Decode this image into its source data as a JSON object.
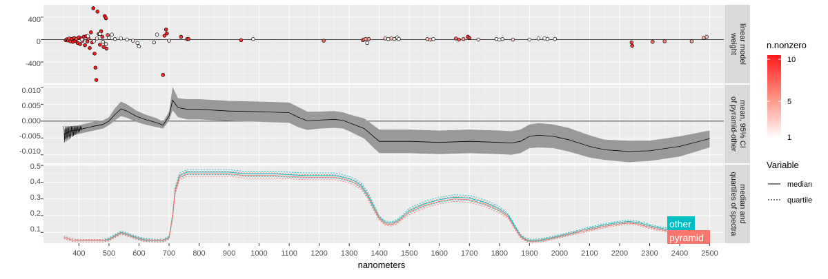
{
  "x_axis": {
    "title": "nanometers",
    "ticks": [
      400,
      500,
      600,
      700,
      800,
      900,
      1000,
      1100,
      1200,
      1300,
      1400,
      1500,
      1600,
      1700,
      1800,
      1900,
      2000,
      2100,
      2200,
      2300,
      2400,
      2500
    ]
  },
  "panels": [
    {
      "strip": [
        "linear model",
        "weight"
      ],
      "yticks": [
        "400",
        "0",
        "-400"
      ]
    },
    {
      "strip": [
        "mean, 95% CI",
        "of pyramid-other"
      ],
      "yticks": [
        "0.010",
        "0.005",
        "0.000",
        "-0.005",
        "-0.010"
      ]
    },
    {
      "strip": [
        "median and",
        "quartiles of spectra"
      ],
      "yticks": [
        "0.5",
        "0.4",
        "0.3",
        "0.2",
        "0.1"
      ]
    }
  ],
  "legends": {
    "color": {
      "title": "n.nonzero",
      "labels": [
        "10",
        "5",
        "1"
      ],
      "colors": [
        "#ff1a1a",
        "#ff8f80",
        "#ffffff"
      ]
    },
    "linetype": {
      "title": "Variable",
      "items": [
        "median",
        "quartile"
      ]
    }
  },
  "labels": {
    "other": "other",
    "pyramid": "pyramid"
  },
  "colors": {
    "other": "#00bfc4",
    "pyramid": "#f8766d",
    "panel_bg": "#ebebeb",
    "strip_bg": "#d9d9d9",
    "ribbon": "#999999"
  },
  "chart_data": [
    {
      "type": "scatter",
      "panel": "linear model weight",
      "xlabel": "nanometers",
      "ylim": [
        -780,
        620
      ],
      "hline": 0,
      "points": [
        [
          356,
          -10,
          9
        ],
        [
          360,
          5,
          10
        ],
        [
          364,
          -15,
          10
        ],
        [
          368,
          20,
          8
        ],
        [
          372,
          -30,
          9
        ],
        [
          376,
          10,
          10
        ],
        [
          380,
          -40,
          10
        ],
        [
          384,
          30,
          9
        ],
        [
          388,
          -25,
          10
        ],
        [
          392,
          15,
          8
        ],
        [
          396,
          -60,
          10
        ],
        [
          400,
          40,
          9
        ],
        [
          404,
          -80,
          10
        ],
        [
          408,
          25,
          10
        ],
        [
          412,
          -20,
          8
        ],
        [
          416,
          50,
          9
        ],
        [
          420,
          -100,
          10
        ],
        [
          424,
          60,
          10
        ],
        [
          428,
          -35,
          9
        ],
        [
          432,
          20,
          8
        ],
        [
          436,
          -150,
          10
        ],
        [
          440,
          130,
          10
        ],
        [
          444,
          -50,
          9
        ],
        [
          448,
          560,
          10
        ],
        [
          452,
          -250,
          10
        ],
        [
          455,
          -500,
          10
        ],
        [
          458,
          -720,
          10
        ],
        [
          462,
          500,
          10
        ],
        [
          466,
          100,
          9
        ],
        [
          470,
          -90,
          10
        ],
        [
          474,
          150,
          10
        ],
        [
          478,
          50,
          9
        ],
        [
          482,
          -130,
          10
        ],
        [
          486,
          420,
          10
        ],
        [
          490,
          380,
          10
        ],
        [
          492,
          -160,
          9
        ],
        [
          496,
          80,
          8
        ],
        [
          410,
          0,
          2
        ],
        [
          430,
          60,
          1
        ],
        [
          450,
          -30,
          1
        ],
        [
          460,
          20,
          2
        ],
        [
          470,
          100,
          1
        ],
        [
          480,
          -40,
          1
        ],
        [
          490,
          -80,
          2
        ],
        [
          500,
          30,
          1
        ],
        [
          510,
          90,
          1
        ],
        [
          520,
          10,
          2
        ],
        [
          540,
          20,
          1
        ],
        [
          560,
          0,
          1
        ],
        [
          580,
          -20,
          2
        ],
        [
          595,
          -60,
          1
        ],
        [
          600,
          -120,
          1
        ],
        [
          650,
          -50,
          2
        ],
        [
          660,
          90,
          1
        ],
        [
          680,
          -630,
          10
        ],
        [
          685,
          70,
          9
        ],
        [
          690,
          180,
          10
        ],
        [
          693,
          110,
          10
        ],
        [
          700,
          -20,
          2
        ],
        [
          740,
          50,
          9
        ],
        [
          760,
          10,
          8
        ],
        [
          765,
          10,
          9
        ],
        [
          940,
          -10,
          9
        ],
        [
          980,
          10,
          1
        ],
        [
          1215,
          -20,
          7
        ],
        [
          1345,
          -10,
          6
        ],
        [
          1350,
          0,
          6
        ],
        [
          1355,
          10,
          5
        ],
        [
          1360,
          -60,
          1
        ],
        [
          1365,
          10,
          5
        ],
        [
          1420,
          20,
          3
        ],
        [
          1430,
          10,
          1
        ],
        [
          1440,
          20,
          4
        ],
        [
          1450,
          10,
          2
        ],
        [
          1460,
          40,
          1
        ],
        [
          1465,
          10,
          1
        ],
        [
          1560,
          10,
          3
        ],
        [
          1570,
          0,
          4
        ],
        [
          1580,
          10,
          1
        ],
        [
          1655,
          20,
          7
        ],
        [
          1665,
          0,
          8
        ],
        [
          1680,
          10,
          5
        ],
        [
          1695,
          50,
          9
        ],
        [
          1700,
          30,
          9
        ],
        [
          1730,
          0,
          2
        ],
        [
          1790,
          10,
          1
        ],
        [
          1800,
          0,
          1
        ],
        [
          1810,
          10,
          2
        ],
        [
          1845,
          0,
          3
        ],
        [
          1900,
          0,
          1
        ],
        [
          1930,
          20,
          1
        ],
        [
          1950,
          20,
          1
        ],
        [
          1960,
          10,
          1
        ],
        [
          1985,
          10,
          1
        ],
        [
          2240,
          -50,
          8
        ],
        [
          2242,
          -110,
          9
        ],
        [
          2310,
          -40,
          7
        ],
        [
          2350,
          -30,
          6
        ],
        [
          2440,
          -30,
          5
        ],
        [
          2480,
          30,
          4
        ],
        [
          2490,
          50,
          3
        ]
      ]
    },
    {
      "type": "area",
      "panel": "mean, 95% CI of pyramid-other",
      "xlabel": "nanometers",
      "ylim": [
        -0.0125,
        0.0108
      ],
      "hline": 0,
      "x": [
        350,
        370,
        400,
        450,
        480,
        500,
        520,
        540,
        560,
        590,
        620,
        660,
        680,
        700,
        712,
        730,
        760,
        800,
        900,
        1000,
        1100,
        1130,
        1160,
        1200,
        1250,
        1280,
        1300,
        1350,
        1380,
        1400,
        1420,
        1500,
        1600,
        1700,
        1800,
        1840,
        1870,
        1900,
        1930,
        1980,
        2030,
        2100,
        2150,
        2230,
        2300,
        2400,
        2500
      ],
      "mean": [
        -0.004,
        -0.003,
        -0.0025,
        -0.0015,
        -0.001,
        0,
        0.002,
        0.0036,
        0.003,
        0.0015,
        0.0005,
        -0.0005,
        -0.0012,
        0.0015,
        0.0062,
        0.004,
        0.0035,
        0.0035,
        0.003,
        0.0028,
        0.0025,
        0.0012,
        0.0001,
        0.0003,
        0.0005,
        0.0002,
        -0.0005,
        -0.0022,
        -0.0045,
        -0.006,
        -0.006,
        -0.006,
        -0.0063,
        -0.006,
        -0.0063,
        -0.0065,
        -0.006,
        -0.0045,
        -0.0042,
        -0.0045,
        -0.0055,
        -0.0075,
        -0.0085,
        -0.009,
        -0.0088,
        -0.0075,
        -0.0052
      ],
      "lower": [
        -0.0055,
        -0.0045,
        -0.0038,
        -0.0028,
        -0.0022,
        -0.0012,
        0.0002,
        0.0015,
        0.001,
        -0.0002,
        -0.001,
        -0.0018,
        -0.0022,
        0.0002,
        0.0032,
        0.0012,
        0.0005,
        0.0005,
        0,
        -0.0002,
        -0.0005,
        -0.0018,
        -0.0026,
        -0.0022,
        -0.002,
        -0.0022,
        -0.003,
        -0.0052,
        -0.0078,
        -0.0095,
        -0.0095,
        -0.0095,
        -0.0098,
        -0.0095,
        -0.0098,
        -0.01,
        -0.0095,
        -0.008,
        -0.0078,
        -0.008,
        -0.009,
        -0.0108,
        -0.0115,
        -0.0122,
        -0.0118,
        -0.0105,
        -0.0078
      ],
      "upper": [
        -0.0025,
        -0.0015,
        -0.0012,
        -0.0002,
        0.0002,
        0.0012,
        0.0038,
        0.0058,
        0.005,
        0.0032,
        0.002,
        0.0008,
        -0.0002,
        0.0028,
        0.0101,
        0.0068,
        0.0065,
        0.0065,
        0.006,
        0.0058,
        0.0055,
        0.0042,
        0.0028,
        0.0028,
        0.003,
        0.0026,
        0.002,
        0.0008,
        -0.0012,
        -0.0025,
        -0.0025,
        -0.0025,
        -0.0028,
        -0.0025,
        -0.0028,
        -0.003,
        -0.0025,
        -0.001,
        -0.0006,
        -0.001,
        -0.002,
        -0.0042,
        -0.0055,
        -0.0058,
        -0.0058,
        -0.0045,
        -0.0028
      ]
    },
    {
      "type": "line",
      "panel": "median and quartiles of spectra",
      "xlabel": "nanometers",
      "ylim": [
        0.035,
        0.505
      ],
      "x": [
        350,
        380,
        400,
        450,
        480,
        500,
        520,
        540,
        560,
        590,
        620,
        660,
        680,
        700,
        712,
        720,
        735,
        760,
        800,
        850,
        900,
        950,
        1000,
        1050,
        1100,
        1150,
        1200,
        1250,
        1280,
        1300,
        1320,
        1340,
        1360,
        1380,
        1400,
        1420,
        1440,
        1460,
        1480,
        1500,
        1550,
        1600,
        1650,
        1700,
        1750,
        1770,
        1800,
        1830,
        1850,
        1870,
        1890,
        1910,
        1940,
        1980,
        2050,
        2100,
        2150,
        2200,
        2230,
        2260,
        2300,
        2350,
        2400,
        2450,
        2500
      ],
      "series": [
        {
          "name": "other",
          "median": [
            0.07,
            0.052,
            0.05,
            0.05,
            0.05,
            0.06,
            0.08,
            0.1,
            0.09,
            0.07,
            0.055,
            0.05,
            0.052,
            0.07,
            0.2,
            0.35,
            0.44,
            0.46,
            0.46,
            0.46,
            0.46,
            0.45,
            0.45,
            0.45,
            0.445,
            0.44,
            0.44,
            0.44,
            0.43,
            0.42,
            0.405,
            0.38,
            0.33,
            0.26,
            0.19,
            0.16,
            0.155,
            0.17,
            0.2,
            0.23,
            0.27,
            0.295,
            0.31,
            0.305,
            0.28,
            0.265,
            0.24,
            0.2,
            0.14,
            0.08,
            0.055,
            0.05,
            0.055,
            0.07,
            0.1,
            0.125,
            0.145,
            0.16,
            0.165,
            0.16,
            0.14,
            0.12,
            0.1,
            0.085,
            0.065
          ]
        },
        {
          "name": "pyramid",
          "median": [
            0.07,
            0.052,
            0.05,
            0.05,
            0.05,
            0.055,
            0.075,
            0.095,
            0.085,
            0.065,
            0.052,
            0.048,
            0.05,
            0.065,
            0.19,
            0.34,
            0.43,
            0.45,
            0.45,
            0.45,
            0.45,
            0.44,
            0.44,
            0.44,
            0.435,
            0.43,
            0.43,
            0.43,
            0.42,
            0.41,
            0.395,
            0.37,
            0.32,
            0.25,
            0.18,
            0.15,
            0.145,
            0.16,
            0.19,
            0.22,
            0.26,
            0.285,
            0.3,
            0.295,
            0.27,
            0.255,
            0.23,
            0.19,
            0.13,
            0.075,
            0.05,
            0.045,
            0.05,
            0.065,
            0.095,
            0.115,
            0.135,
            0.15,
            0.155,
            0.15,
            0.13,
            0.11,
            0.09,
            0.075,
            0.06
          ]
        }
      ],
      "quartile_offsets": [
        -0.015,
        0.015
      ],
      "annotations": [
        "other",
        "pyramid"
      ]
    }
  ]
}
